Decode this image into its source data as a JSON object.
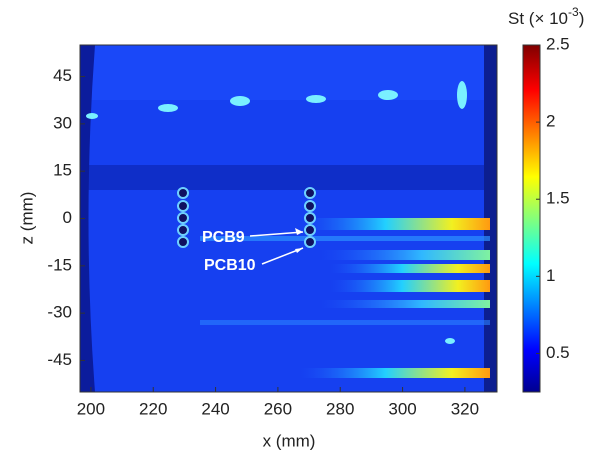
{
  "chart_data": {
    "type": "heatmap",
    "xlabel": "x (mm)",
    "ylabel": "z (mm)",
    "xlim": [
      196.5,
      330.3
    ],
    "xticks": [
      200,
      220,
      240,
      260,
      280,
      300,
      320
    ],
    "ylim": [
      -55,
      55
    ],
    "yticks": [
      45,
      30,
      15,
      0,
      -15,
      -30,
      -45
    ],
    "colorbar": {
      "label": "St (× 10",
      "exponent": "-3",
      "close": ")",
      "clim": [
        0.25,
        2.5
      ],
      "ticks": [
        0.5,
        1,
        1.5,
        2,
        2.5
      ],
      "colormap": "jet"
    },
    "annotations": [
      "PCB9",
      "PCB10"
    ]
  }
}
